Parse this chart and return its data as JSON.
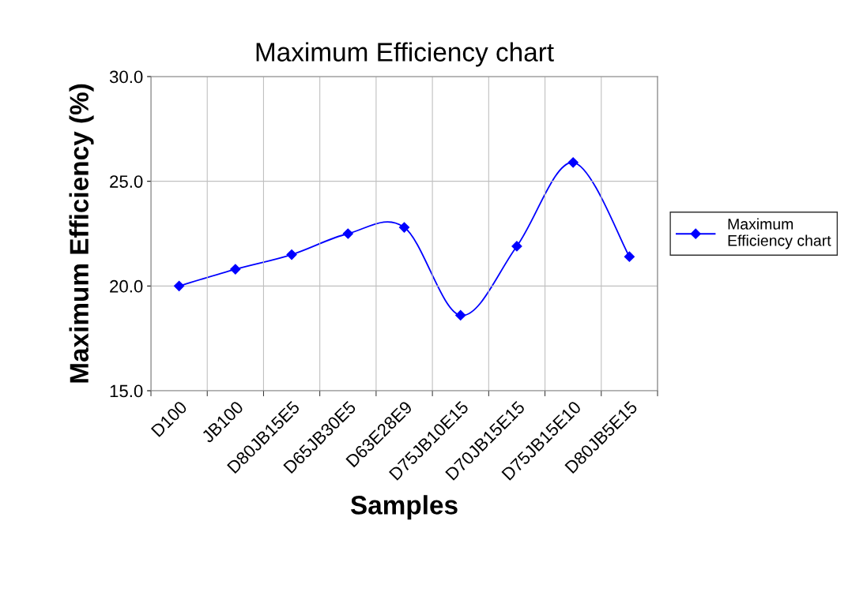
{
  "chart_data": {
    "type": "line",
    "title": "Maximum Efficiency chart",
    "xlabel": "Samples",
    "ylabel": "Maximum Efficiency (%)",
    "categories": [
      "D100",
      "JB100",
      "D80JB15E5",
      "D65JB30E5",
      "D63E28E9",
      "D75JB10E15",
      "D70JB15E15",
      "D75JB15E10",
      "D80JB5E15"
    ],
    "series": [
      {
        "name": "Maximum Efficiency chart",
        "color": "#0000ff",
        "values": [
          20.0,
          20.8,
          21.5,
          22.5,
          22.8,
          18.6,
          21.9,
          25.9,
          21.4
        ]
      }
    ],
    "ylim": [
      15,
      30
    ],
    "yticks": [
      {
        "value": 15,
        "label": "15.0"
      },
      {
        "value": 20,
        "label": "20.0"
      },
      {
        "value": 25,
        "label": "25.0"
      },
      {
        "value": 30,
        "label": "30.0"
      }
    ],
    "grid": true,
    "legend": "right",
    "marker": "diamond",
    "line_style": "solid"
  }
}
